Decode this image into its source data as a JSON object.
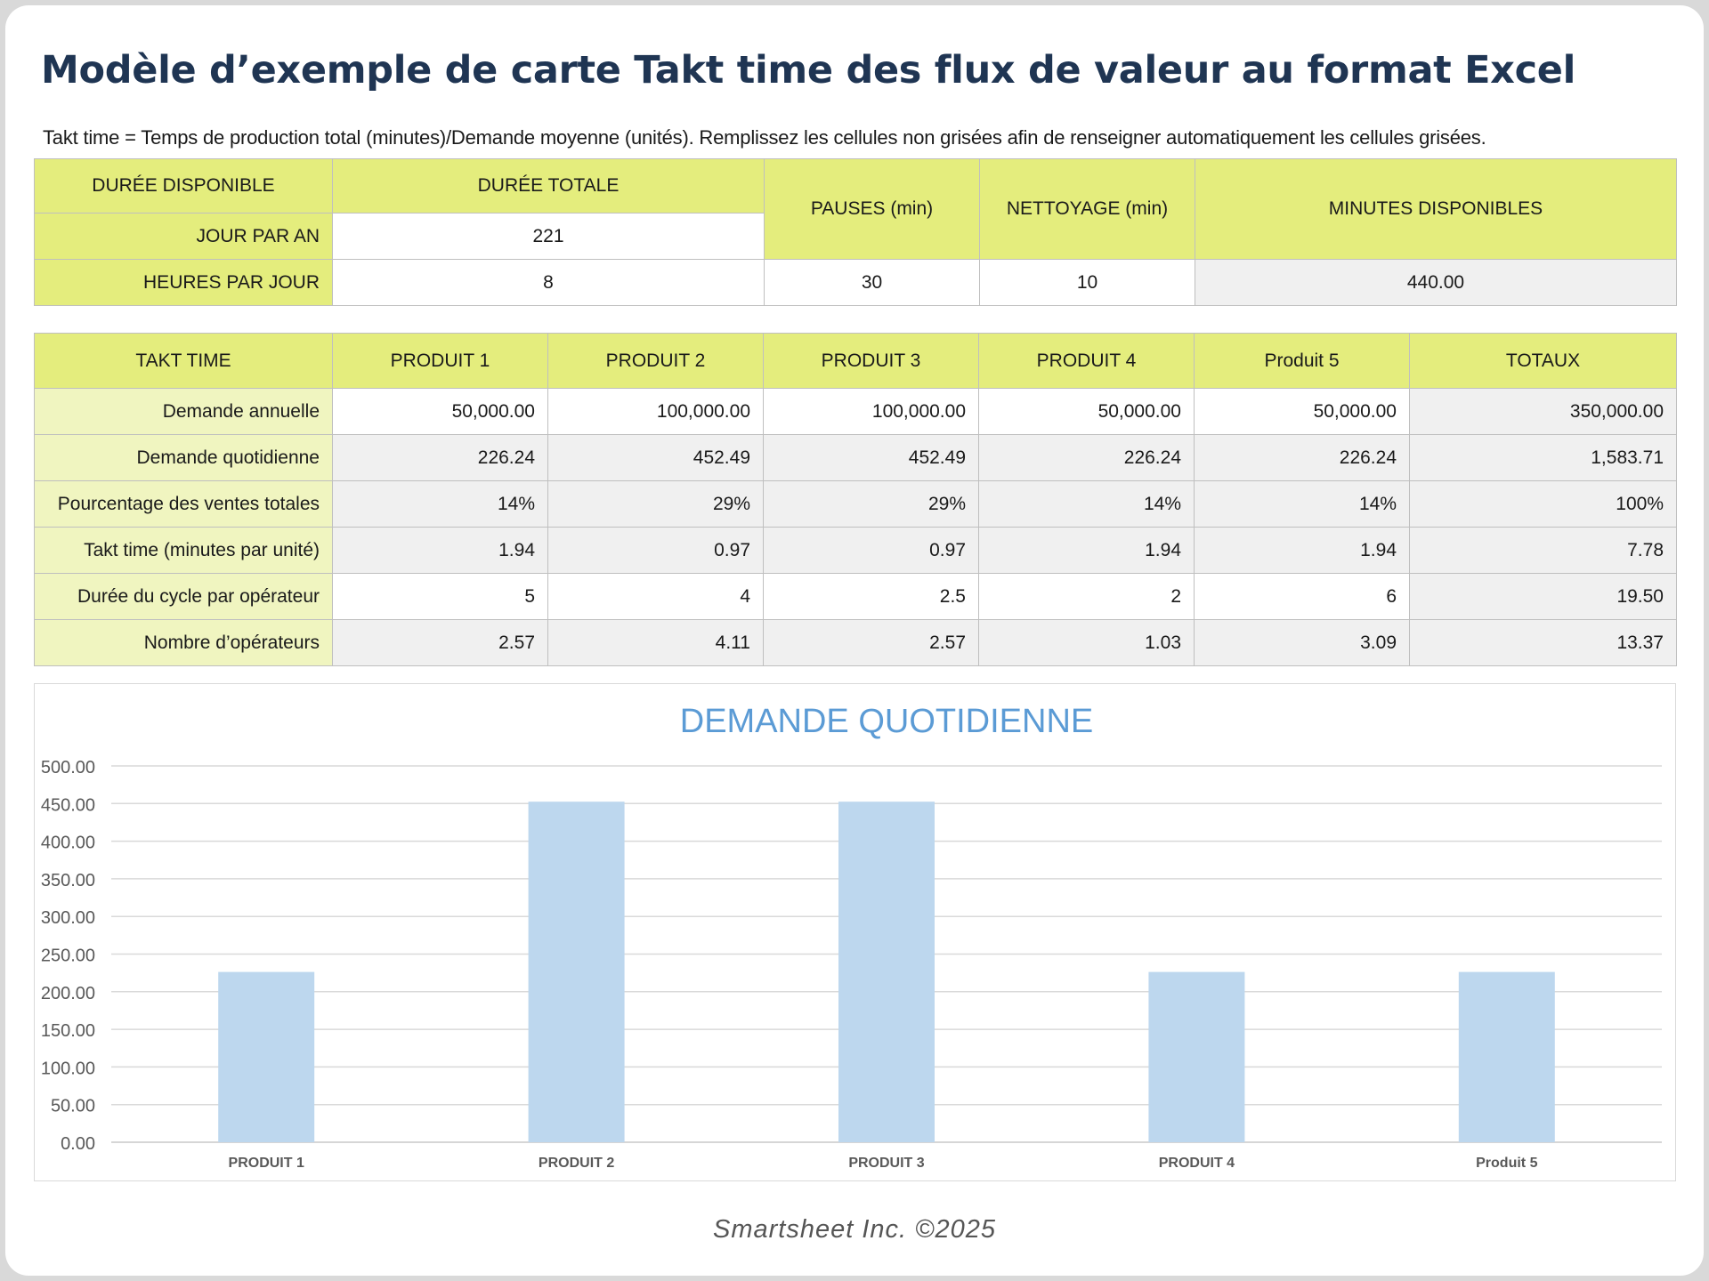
{
  "title": "Modèle d’exemple de carte Takt time des flux de valeur au format Excel",
  "subtitle": "Takt time = Temps de production total (minutes)/Demande moyenne (unités). Remplissez les cellules non grisées afin de renseigner automatiquement les cellules grisées.",
  "availability": {
    "header_duree_disponible": "DURÉE DISPONIBLE",
    "header_duree_totale": "DURÉE TOTALE",
    "header_pauses": "PAUSES (min)",
    "header_nettoyage": "NETTOYAGE (min)",
    "header_minutes_disponibles": "MINUTES DISPONIBLES",
    "label_jour_par_an": "JOUR PAR AN",
    "value_jour_par_an": "221",
    "label_heures_par_jour": "HEURES PAR JOUR",
    "value_heures_par_jour": "8",
    "value_pauses": "30",
    "value_nettoyage": "10",
    "value_minutes_disponibles": "440.00"
  },
  "takt": {
    "headers": [
      "TAKT TIME",
      "PRODUIT 1",
      "PRODUIT 2",
      "PRODUIT 3",
      "PRODUIT 4",
      "Produit 5",
      "TOTAUX"
    ],
    "rows": [
      {
        "label": "Demande annuelle",
        "values": [
          "50,000.00",
          "100,000.00",
          "100,000.00",
          "50,000.00",
          "50,000.00"
        ],
        "total": "350,000.00"
      },
      {
        "label": "Demande quotidienne",
        "values": [
          "226.24",
          "452.49",
          "452.49",
          "226.24",
          "226.24"
        ],
        "total": "1,583.71"
      },
      {
        "label": "Pourcentage des ventes totales",
        "values": [
          "14%",
          "29%",
          "29%",
          "14%",
          "14%"
        ],
        "total": "100%"
      },
      {
        "label": "Takt time (minutes par unité)",
        "values": [
          "1.94",
          "0.97",
          "0.97",
          "1.94",
          "1.94"
        ],
        "total": "7.78"
      },
      {
        "label": "Durée du cycle par opérateur",
        "values": [
          "5",
          "4",
          "2.5",
          "2",
          "6"
        ],
        "total": "19.50"
      },
      {
        "label": "Nombre d’opérateurs",
        "values": [
          "2.57",
          "4.11",
          "2.57",
          "1.03",
          "3.09"
        ],
        "total": "13.37"
      }
    ]
  },
  "chart_data": {
    "type": "bar",
    "title": "DEMANDE QUOTIDIENNE",
    "categories": [
      "PRODUIT 1",
      "PRODUIT 2",
      "PRODUIT 3",
      "PRODUIT 4",
      "Produit 5"
    ],
    "values": [
      226.24,
      452.49,
      452.49,
      226.24,
      226.24
    ],
    "ylim": [
      0,
      500
    ],
    "yticks": [
      "0.00",
      "50.00",
      "100.00",
      "150.00",
      "200.00",
      "250.00",
      "300.00",
      "350.00",
      "400.00",
      "450.00",
      "500.00"
    ],
    "grid": true,
    "bar_color": "#bdd7ee",
    "title_color": "#5b9bd5"
  },
  "footer": "Smartsheet Inc. ©2025"
}
